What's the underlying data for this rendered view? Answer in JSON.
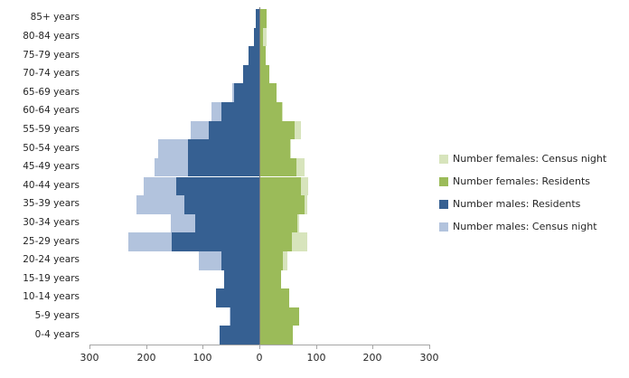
{
  "chart_data": {
    "type": "bar",
    "variant": "population-pyramid",
    "title": "",
    "categories": [
      "85+ years",
      "80-84 years",
      "75-79 years",
      "70-74 years",
      "65-69 years",
      "60-64 years",
      "55-59 years",
      "50-54 years",
      "45-49 years",
      "40-44 years",
      "35-39 years",
      "30-34 years",
      "25-29 years",
      "20-24 years",
      "15-19 years",
      "10-14 years",
      "5-9 years",
      "0-4 years"
    ],
    "series": [
      {
        "name": "Number females: Census night",
        "color": "#D7E4BC",
        "side": "right",
        "layer": "back",
        "values": [
          9,
          11,
          9,
          15,
          28,
          40,
          72,
          55,
          78,
          85,
          83,
          69,
          83,
          48,
          35,
          50,
          68,
          56
        ]
      },
      {
        "name": "Number females: Residents",
        "color": "#9BBB59",
        "side": "right",
        "layer": "front",
        "values": [
          11,
          5,
          10,
          16,
          29,
          38,
          60,
          53,
          64,
          72,
          78,
          65,
          56,
          40,
          37,
          51,
          69,
          57
        ]
      },
      {
        "name": "Number males: Residents",
        "color": "#366092",
        "side": "left",
        "layer": "front",
        "values": [
          7,
          10,
          19,
          29,
          45,
          67,
          89,
          126,
          126,
          147,
          132,
          113,
          155,
          67,
          62,
          77,
          51,
          70
        ]
      },
      {
        "name": "Number males: Census night",
        "color": "#B2C3DD",
        "side": "left",
        "layer": "back",
        "values": [
          6,
          9,
          18,
          28,
          48,
          85,
          121,
          179,
          185,
          204,
          217,
          156,
          231,
          107,
          62,
          77,
          53,
          70
        ]
      }
    ],
    "x_axis": {
      "tick_labels": [
        "300",
        "200",
        "100",
        "0",
        "100",
        "200",
        "300"
      ],
      "max_per_side": 300,
      "tick_step": 100
    },
    "legend_position": "right",
    "grid": false
  },
  "colors": {
    "background": "#FFFFFF",
    "axis_line": "#A6A6A6",
    "zero_line": "#7F7F7F",
    "text": "#262626"
  }
}
